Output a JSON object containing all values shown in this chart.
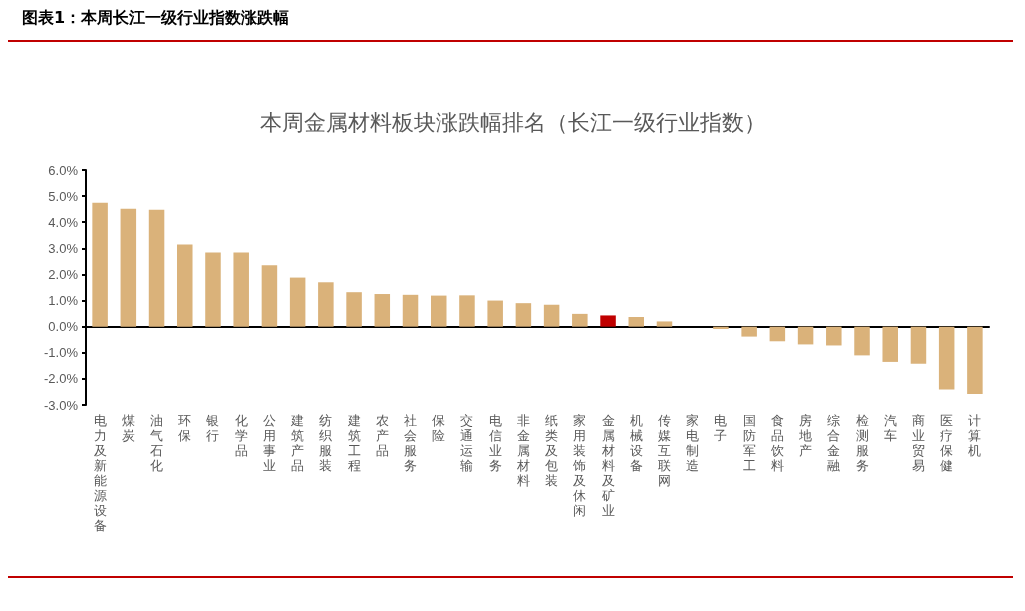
{
  "chart_data": {
    "type": "bar",
    "subtitle": "图表1：本周长江一级行业指数涨跌幅",
    "title": "本周金属材料板块涨跌幅排名（长江一级行业指数）",
    "categories": [
      "电力及新能源设备",
      "煤炭",
      "油气石化",
      "环保",
      "银行",
      "化学品",
      "公用事业",
      "建筑产品",
      "纺织服装",
      "建筑工程",
      "农产品",
      "社会服务",
      "保险",
      "交通运输",
      "电信业务",
      "非金属材料",
      "纸类及包装",
      "家用装饰及休闲",
      "金属材料及矿业",
      "机械设备",
      "传媒互联网",
      "家电制造",
      "电子",
      "国防军工",
      "食品饮料",
      "房地产",
      "综合金融",
      "检测服务",
      "汽车",
      "商业贸易",
      "医疗保健",
      "计算机"
    ],
    "values": [
      4.75,
      4.52,
      4.48,
      3.15,
      2.84,
      2.84,
      2.35,
      1.88,
      1.7,
      1.32,
      1.25,
      1.22,
      1.19,
      1.2,
      1.0,
      0.9,
      0.84,
      0.49,
      0.43,
      0.37,
      0.2,
      0.0,
      -0.09,
      -0.38,
      -0.56,
      -0.68,
      -0.72,
      -1.1,
      -1.35,
      -1.42,
      -2.41,
      -2.58
    ],
    "colors": [
      "#dab27a",
      "#dab27a",
      "#dab27a",
      "#dab27a",
      "#dab27a",
      "#dab27a",
      "#dab27a",
      "#dab27a",
      "#dab27a",
      "#dab27a",
      "#dab27a",
      "#dab27a",
      "#dab27a",
      "#dab27a",
      "#dab27a",
      "#dab27a",
      "#dab27a",
      "#dab27a",
      "#c00000",
      "#dab27a",
      "#dab27a",
      "#dab27a",
      "#dab27a",
      "#dab27a",
      "#dab27a",
      "#dab27a",
      "#dab27a",
      "#dab27a",
      "#dab27a",
      "#dab27a",
      "#dab27a",
      "#dab27a"
    ],
    "ylim": [
      -3,
      6
    ],
    "yticks": [
      {
        "value": -3,
        "label": "-3.0%"
      },
      {
        "value": -2,
        "label": "-2.0%"
      },
      {
        "value": -1,
        "label": "-1.0%"
      },
      {
        "value": 0,
        "label": "0.0%"
      },
      {
        "value": 1,
        "label": "1.0%"
      },
      {
        "value": 2,
        "label": "2.0%"
      },
      {
        "value": 3,
        "label": "3.0%"
      },
      {
        "value": 4,
        "label": "4.0%"
      },
      {
        "value": 5,
        "label": "5.0%"
      },
      {
        "value": 6,
        "label": "6.0%"
      }
    ],
    "tick_labels": "xy"
  }
}
